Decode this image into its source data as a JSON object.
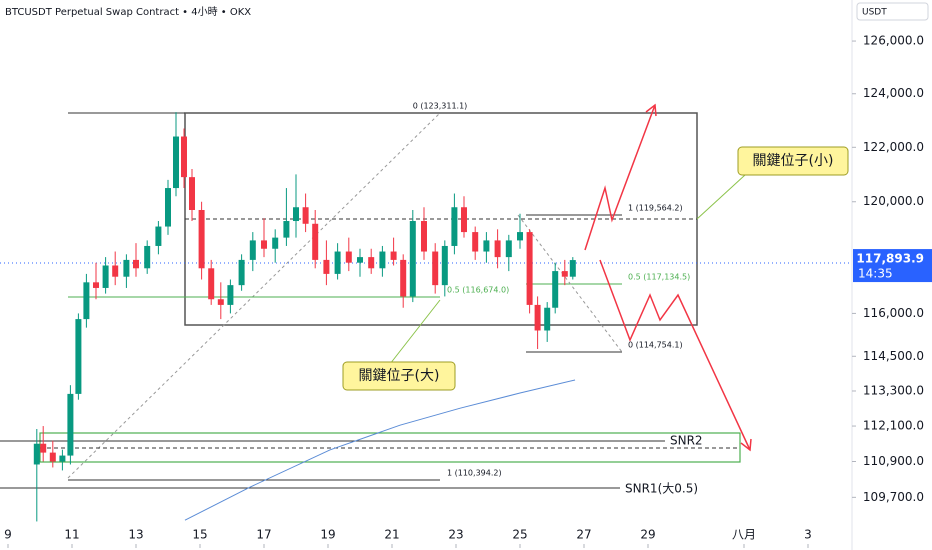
{
  "chart_data": {
    "type": "candlestick",
    "title": "BTCUSDT Perpetual Swap Contract • 4小時 • OKX",
    "currency": "USDT",
    "log": true,
    "up_color": "#089981",
    "down_color": "#f23645",
    "x": [
      9.9,
      10.1,
      10.4,
      10.7,
      10.95,
      11.2,
      11.45,
      11.75,
      12.05,
      12.35,
      12.7,
      13.0,
      13.35,
      13.7,
      14.0,
      14.25,
      14.5,
      14.75,
      15.05,
      15.35,
      15.65,
      15.95,
      16.3,
      16.65,
      17.0,
      17.35,
      17.7,
      18.0,
      18.3,
      18.6,
      18.95,
      19.3,
      19.65,
      20.0,
      20.35,
      20.7,
      21.05,
      21.35,
      21.65,
      22.0,
      22.35,
      22.65,
      22.95,
      23.25,
      23.6,
      23.95,
      24.3,
      24.65,
      25.0,
      25.3,
      25.55,
      25.85,
      26.1,
      26.4,
      26.65
    ],
    "open": [
      110800,
      111500,
      111200,
      110900,
      111100,
      113200,
      115800,
      117100,
      116900,
      117700,
      117300,
      117900,
      117600,
      118400,
      119100,
      120500,
      122400,
      120900,
      119700,
      117600,
      116500,
      116300,
      117000,
      117900,
      118600,
      118300,
      118700,
      119300,
      119800,
      119200,
      117900,
      117400,
      118200,
      117800,
      118000,
      117600,
      118200,
      117900,
      116600,
      119300,
      118200,
      117000,
      118400,
      119800,
      118900,
      118200,
      118600,
      118000,
      118600,
      118900,
      116300,
      115400,
      116200,
      117500,
      117300
    ],
    "high": [
      112000,
      112100,
      111600,
      111300,
      113500,
      116000,
      117400,
      117800,
      118000,
      118200,
      118100,
      118500,
      118600,
      119300,
      120800,
      123311,
      122700,
      121200,
      120000,
      117900,
      117100,
      117200,
      118100,
      118900,
      119400,
      119000,
      120500,
      121000,
      120300,
      119700,
      118600,
      118500,
      118700,
      118300,
      118300,
      118400,
      118700,
      118100,
      119700,
      119800,
      118500,
      118600,
      120300,
      120200,
      119100,
      118900,
      119000,
      118800,
      119564,
      119000,
      116600,
      116400,
      117800,
      117900,
      118000
    ],
    "low": [
      108900,
      110900,
      110700,
      110600,
      110800,
      113000,
      115500,
      116500,
      116700,
      117000,
      116900,
      117300,
      117400,
      118100,
      118800,
      120200,
      120500,
      119300,
      117200,
      116300,
      115800,
      116000,
      116800,
      117500,
      118000,
      117800,
      118400,
      118700,
      118900,
      117600,
      117000,
      117200,
      117500,
      117300,
      117400,
      117300,
      117700,
      116200,
      116400,
      117900,
      116700,
      116600,
      118100,
      118700,
      117900,
      117800,
      117600,
      117500,
      118300,
      116000,
      114754,
      115000,
      116000,
      117000,
      117200
    ],
    "close": [
      111500,
      111200,
      110900,
      111100,
      113200,
      115800,
      117100,
      116900,
      117700,
      117300,
      117900,
      117600,
      118400,
      119100,
      120500,
      122400,
      120900,
      119700,
      117600,
      116500,
      116300,
      117000,
      117900,
      118600,
      118300,
      118700,
      119300,
      119800,
      119200,
      117900,
      117400,
      118200,
      117800,
      118000,
      117600,
      118200,
      117900,
      116600,
      119300,
      118200,
      117000,
      118400,
      119800,
      118900,
      118200,
      118600,
      118000,
      118600,
      118900,
      116300,
      115400,
      116200,
      117500,
      117300,
      117894
    ],
    "ma": {
      "color": "#5b8cd6",
      "x": [
        14.53,
        16.56,
        19.06,
        21.25,
        23.13,
        25.0,
        26.72
      ],
      "values": [
        108940,
        110040,
        111290,
        112130,
        112710,
        113230,
        113680
      ]
    },
    "xlim": [
      8.75,
      35.375
    ],
    "xticks": [
      9,
      11,
      13,
      15,
      17,
      19,
      21,
      23,
      25,
      27,
      29,
      {
        "value": 32,
        "label": "八月"
      },
      {
        "value": 34,
        "label": "3"
      }
    ],
    "ylim": [
      107960,
      127580
    ],
    "yticks": [
      {
        "value": 126000,
        "label": "126,000.0"
      },
      {
        "value": 124000,
        "label": "124,000.0"
      },
      {
        "value": 122000,
        "label": "122,000.0"
      },
      {
        "value": 120000,
        "label": "120,000.0"
      },
      {
        "value": 116000,
        "label": "116,000.0"
      },
      {
        "value": 114500,
        "label": "114,500.0"
      },
      {
        "value": 113300,
        "label": "113,300.0"
      },
      {
        "value": 112100,
        "label": "112,100.0"
      },
      {
        "value": 110900,
        "label": "110,900.0"
      },
      {
        "value": 109700,
        "label": "109,700.0"
      }
    ],
    "last_price": {
      "value": 117893.9,
      "label": "117,893.9"
    },
    "countdown": "14:35",
    "annotations": {
      "fib_top": "0 (123,311.1)",
      "fib_small_1": "1 (119,564.2)",
      "fib_small_half": "0.5 (117,134.5)",
      "fib_small_0": "0 (114,754.1)",
      "fib_big_half": "0.5 (116,674.0)",
      "fib_big_1": "1 (110,394.2)",
      "snr2": "SNR2",
      "snr1": "SNR1(大0.5)",
      "callout_small": "關鍵位子(小)",
      "callout_big": "關鍵位子(大)"
    }
  }
}
